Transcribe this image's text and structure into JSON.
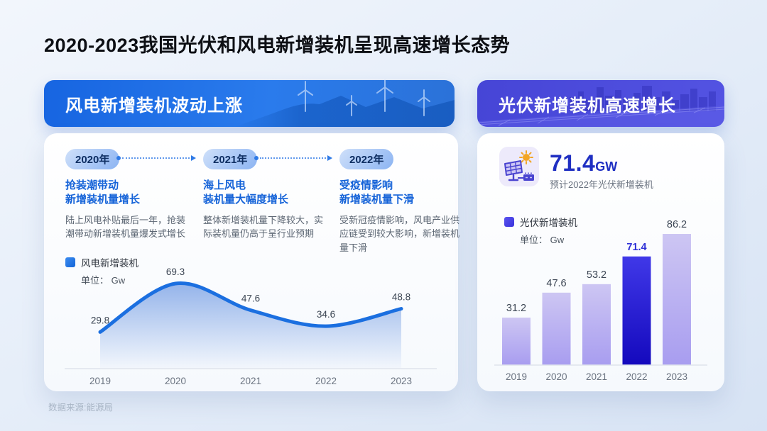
{
  "page": {
    "title": "2020-2023我国光伏和风电新增装机呈现高速增长态势",
    "source": "数据来源:能源局"
  },
  "wind_section": {
    "banner": "风电新增装机波动上涨",
    "timeline": [
      {
        "year": "2020年",
        "heading": "抢装潮带动\n新增装机量增长",
        "body": "陆上风电补贴最后一年，抢装潮带动新增装机量爆发式增长"
      },
      {
        "year": "2021年",
        "heading": "海上风电\n装机量大幅度增长",
        "body": "整体新增装机量下降较大，实际装机量仍高于呈行业预期"
      },
      {
        "year": "2022年",
        "heading": "受疫情影响\n新增装机量下滑",
        "body": "受新冠疫情影响，风电产业供应链受到较大影响，新增装机量下滑"
      }
    ],
    "legend": {
      "label": "风电新增装机",
      "unit": "单位： Gw"
    }
  },
  "solar_section": {
    "banner": "光伏新增装机高速增长",
    "stat": {
      "value": "71.4",
      "unit": "GW",
      "caption": "预计2022年光伏新增装机"
    },
    "legend": {
      "label": "光伏新增装机",
      "unit": "单位： Gw"
    }
  },
  "chart_data": [
    {
      "type": "line",
      "title": "风电新增装机",
      "ylabel": "Gw",
      "categories": [
        "2019",
        "2020",
        "2021",
        "2022",
        "2023"
      ],
      "values": [
        29.8,
        69.3,
        47.6,
        34.6,
        48.8
      ],
      "ylim": [
        0,
        80
      ],
      "grid": false,
      "legend_position": "top-left",
      "line_color": "#1b6fe0",
      "area_top_color": "rgba(47,108,214,0.50)",
      "area_bottom_color": "rgba(47,108,214,0.02)"
    },
    {
      "type": "bar",
      "title": "光伏新增装机",
      "ylabel": "Gw",
      "categories": [
        "2019",
        "2020",
        "2021",
        "2022",
        "2023"
      ],
      "values": [
        31.2,
        47.6,
        53.2,
        71.4,
        86.2
      ],
      "highlight_index": 3,
      "ylim": [
        0,
        95
      ],
      "grid": false,
      "legend_position": "top-left",
      "bar_top_color": "#cdc6f3",
      "bar_bottom_color": "#a89df0",
      "highlight_top_color": "#4038e8",
      "highlight_bottom_color": "#1409bd",
      "highlight_label_color": "#2d2fd6"
    }
  ],
  "colors": {
    "wind_banner": "#1f6fe6",
    "solar_banner": "#4c4bdb",
    "heading_blue": "#1563d8",
    "stat_blue": "#1f2fc2",
    "axis_label": "#6a7380",
    "value_label": "#3c4654"
  }
}
